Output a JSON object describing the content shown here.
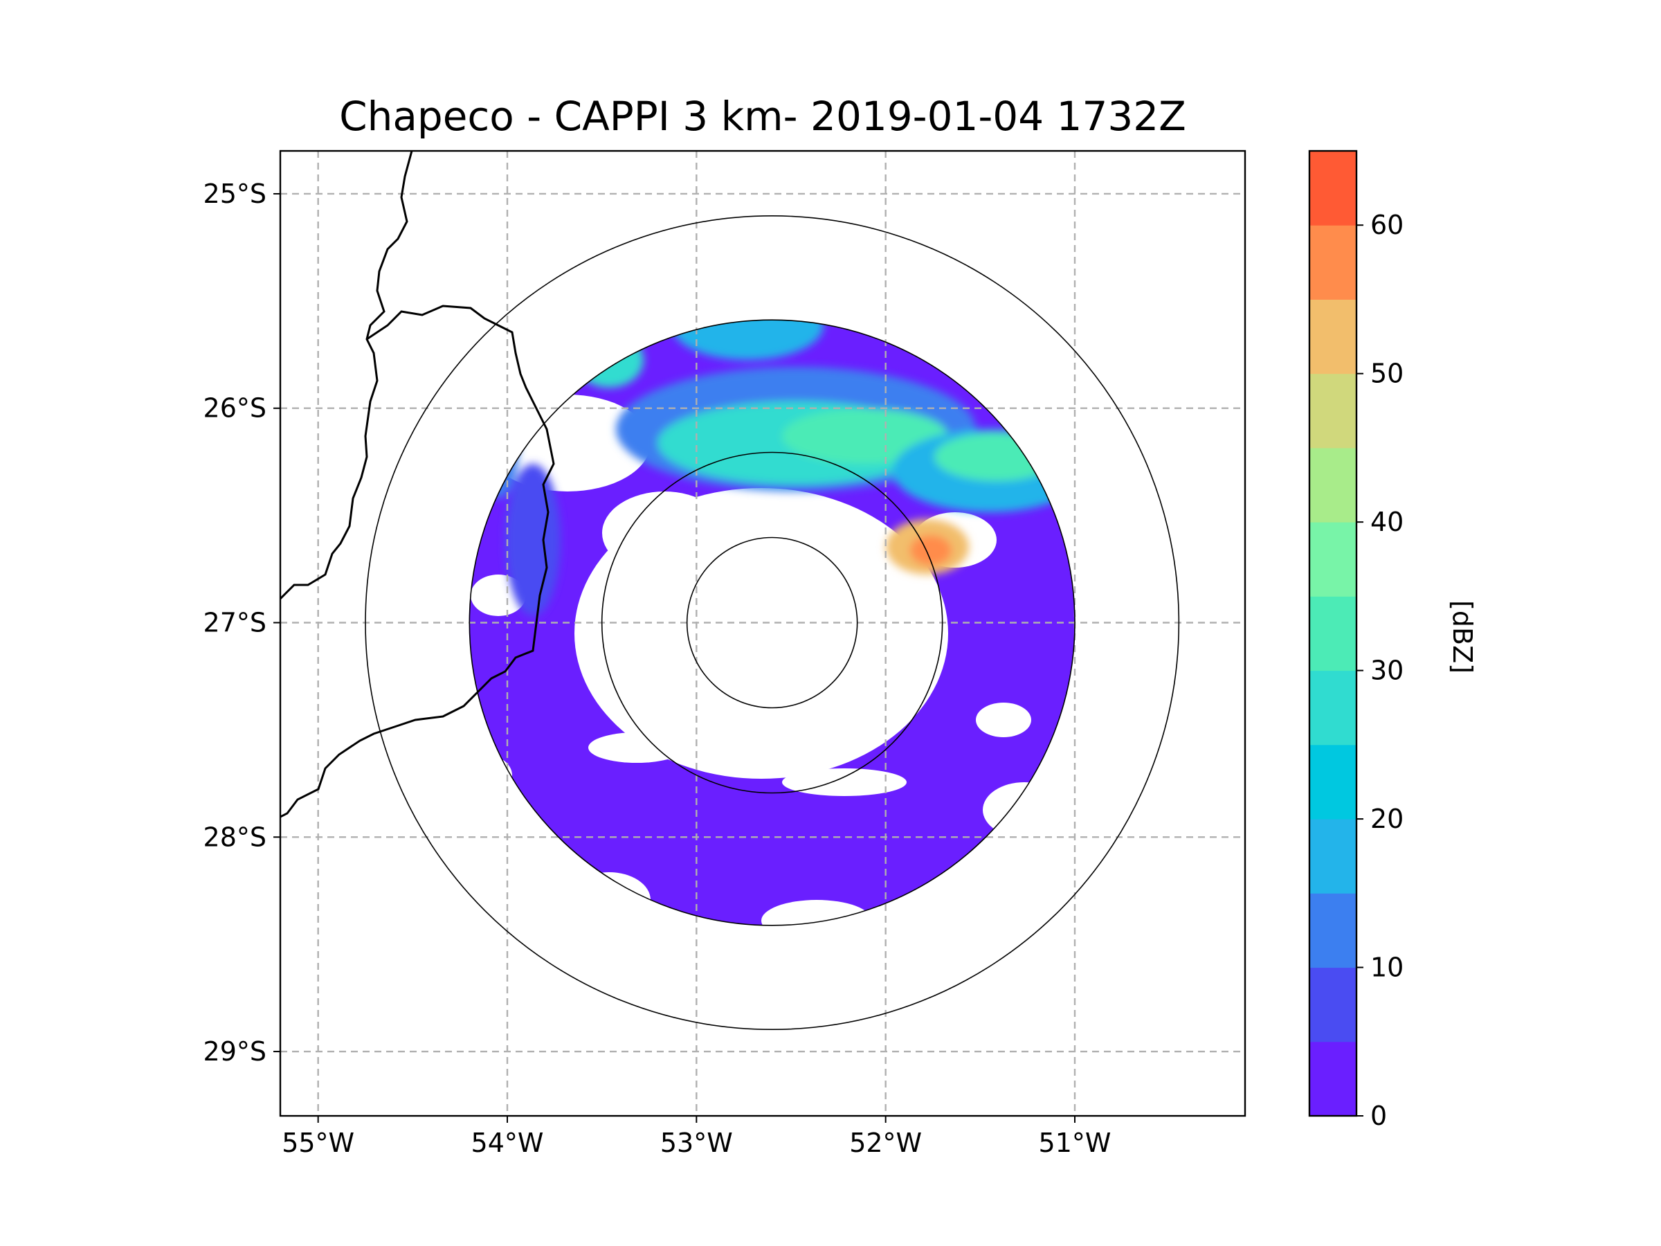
{
  "chart_data": {
    "type": "heatmap",
    "title": "Chapeco - CAPPI 3 km- 2019-01-04 1732Z",
    "radar_site": "Chapeco",
    "product": "CAPPI 3 km",
    "datetime": "2019-01-04 1732Z",
    "radar_center": {
      "lon": -52.6,
      "lat": -27.0
    },
    "xlim": [
      -55.2,
      -50.1
    ],
    "ylim": [
      -29.3,
      -24.8
    ],
    "x_ticks": [
      {
        "value": -55,
        "label": "55°W"
      },
      {
        "value": -54,
        "label": "54°W"
      },
      {
        "value": -53,
        "label": "53°W"
      },
      {
        "value": -52,
        "label": "52°W"
      },
      {
        "value": -51,
        "label": "51°W"
      }
    ],
    "y_ticks": [
      {
        "value": -25,
        "label": "25°S"
      },
      {
        "value": -26,
        "label": "26°S"
      },
      {
        "value": -27,
        "label": "27°S"
      },
      {
        "value": -28,
        "label": "28°S"
      },
      {
        "value": -29,
        "label": "29°S"
      }
    ],
    "grid": true,
    "range_rings_deg": [
      0.45,
      0.9,
      1.6,
      2.15
    ],
    "colorbar": {
      "label": "[dBZ]",
      "min": 0,
      "max": 65,
      "levels": [
        0,
        5,
        10,
        15,
        20,
        25,
        30,
        35,
        40,
        45,
        50,
        55,
        60,
        65
      ],
      "colors": [
        "#6a1fff",
        "#4a4cf2",
        "#3c7ff0",
        "#23b4ea",
        "#00c8e0",
        "#30dcd0",
        "#4cebb6",
        "#78f4a8",
        "#a8ec8a",
        "#d0d87c",
        "#f2be6c",
        "#ff8c4c",
        "#ff5a34",
        "#ff2a1a"
      ],
      "tick_values": [
        0,
        10,
        20,
        30,
        40,
        50,
        60
      ],
      "tick_labels": [
        "0",
        "10",
        "20",
        "30",
        "40",
        "50",
        "60"
      ]
    },
    "echo_regions": [
      {
        "name": "widespread-light-echo",
        "dbz": 2
      },
      {
        "name": "northern-band",
        "dbz": 25
      },
      {
        "name": "strong-cell-east-northeast",
        "dbz": 50
      },
      {
        "name": "western-band",
        "dbz": 15
      }
    ]
  }
}
